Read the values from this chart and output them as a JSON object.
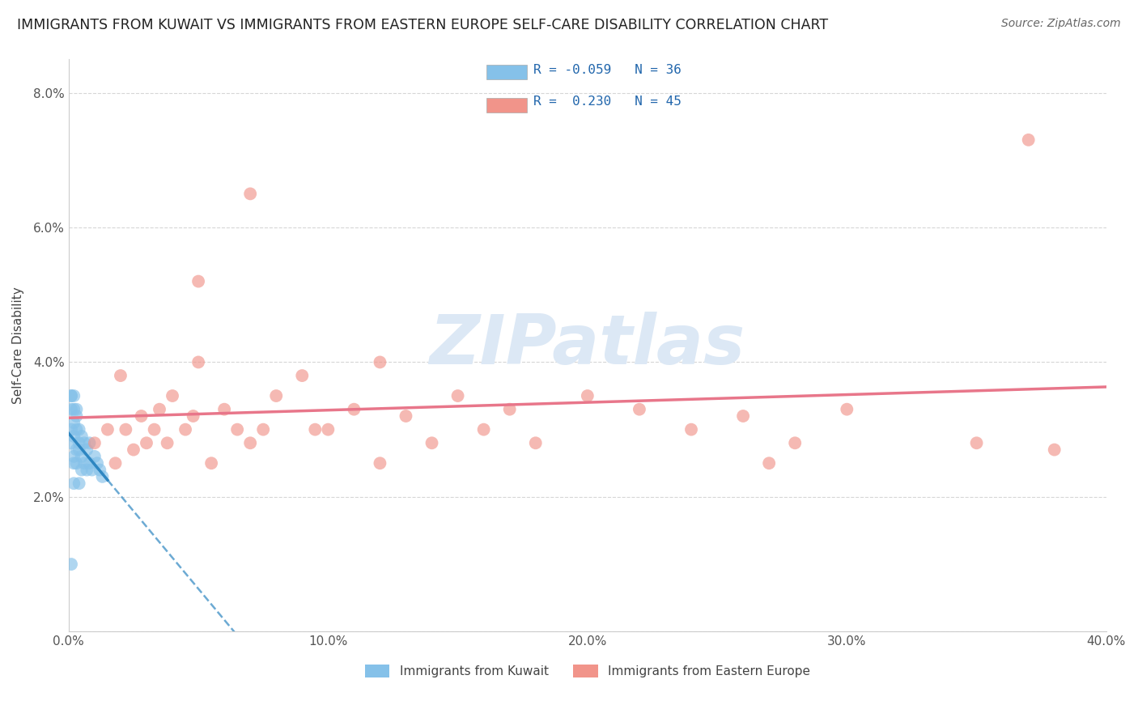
{
  "title": "IMMIGRANTS FROM KUWAIT VS IMMIGRANTS FROM EASTERN EUROPE SELF-CARE DISABILITY CORRELATION CHART",
  "source": "Source: ZipAtlas.com",
  "ylabel": "Self-Care Disability",
  "xlim": [
    0.0,
    0.4
  ],
  "ylim": [
    0.0,
    0.085
  ],
  "x_ticks": [
    0.0,
    0.1,
    0.2,
    0.3,
    0.4
  ],
  "x_tick_labels": [
    "0.0%",
    "10.0%",
    "20.0%",
    "30.0%",
    "40.0%"
  ],
  "y_ticks": [
    0.0,
    0.02,
    0.04,
    0.06,
    0.08
  ],
  "y_tick_labels": [
    "",
    "2.0%",
    "4.0%",
    "6.0%",
    "8.0%"
  ],
  "legend_R1": "-0.059",
  "legend_N1": "36",
  "legend_R2": "0.230",
  "legend_N2": "45",
  "color_kuwait": "#85c1e9",
  "color_eastern": "#f1948a",
  "color_kuwait_line": "#2e86c1",
  "color_eastern_line": "#e8768a",
  "background_color": "#ffffff",
  "watermark_color": "#dce8f5",
  "kuwait_x": [
    0.001,
    0.001,
    0.001,
    0.001,
    0.002,
    0.002,
    0.002,
    0.002,
    0.002,
    0.003,
    0.003,
    0.003,
    0.003,
    0.004,
    0.004,
    0.004,
    0.005,
    0.005,
    0.005,
    0.006,
    0.006,
    0.007,
    0.007,
    0.008,
    0.008,
    0.009,
    0.01,
    0.011,
    0.012,
    0.013,
    0.001,
    0.002,
    0.003,
    0.004,
    0.002,
    0.001
  ],
  "kuwait_y": [
    0.03,
    0.028,
    0.033,
    0.035,
    0.026,
    0.029,
    0.031,
    0.033,
    0.025,
    0.027,
    0.03,
    0.032,
    0.025,
    0.028,
    0.03,
    0.027,
    0.026,
    0.029,
    0.024,
    0.025,
    0.028,
    0.024,
    0.027,
    0.025,
    0.028,
    0.024,
    0.026,
    0.025,
    0.024,
    0.023,
    0.035,
    0.035,
    0.033,
    0.022,
    0.022,
    0.01
  ],
  "eastern_x": [
    0.01,
    0.015,
    0.018,
    0.02,
    0.022,
    0.025,
    0.028,
    0.03,
    0.033,
    0.035,
    0.038,
    0.04,
    0.045,
    0.048,
    0.05,
    0.055,
    0.06,
    0.065,
    0.07,
    0.075,
    0.08,
    0.09,
    0.095,
    0.1,
    0.11,
    0.12,
    0.13,
    0.14,
    0.15,
    0.16,
    0.17,
    0.18,
    0.2,
    0.22,
    0.24,
    0.26,
    0.28,
    0.3,
    0.35,
    0.38,
    0.05,
    0.07,
    0.12,
    0.27,
    0.37
  ],
  "eastern_y": [
    0.028,
    0.03,
    0.025,
    0.038,
    0.03,
    0.027,
    0.032,
    0.028,
    0.03,
    0.033,
    0.028,
    0.035,
    0.03,
    0.032,
    0.04,
    0.025,
    0.033,
    0.03,
    0.028,
    0.03,
    0.035,
    0.038,
    0.03,
    0.03,
    0.033,
    0.025,
    0.032,
    0.028,
    0.035,
    0.03,
    0.033,
    0.028,
    0.035,
    0.033,
    0.03,
    0.032,
    0.028,
    0.033,
    0.028,
    0.027,
    0.052,
    0.065,
    0.04,
    0.025,
    0.073
  ]
}
